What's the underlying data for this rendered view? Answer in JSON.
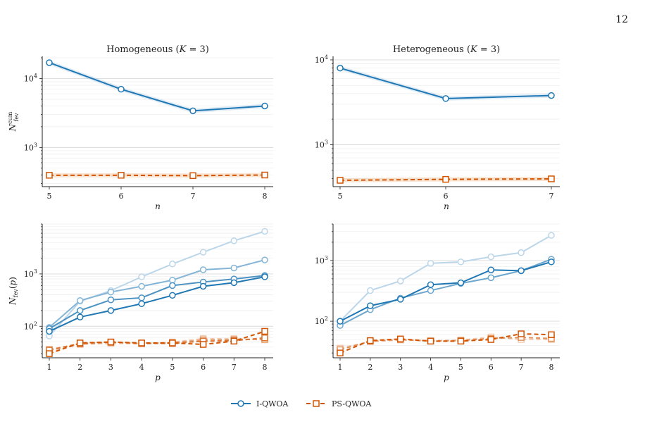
{
  "page_number": "12",
  "colors": {
    "iqwoa": "#1f77b4",
    "psqwoa": "#d35400",
    "iqwoa_light": "#a8cce6",
    "psqwoa_light": "#f2b27a"
  },
  "legend": {
    "position": "bottom-center",
    "items": [
      "I-QWOA",
      "PS-QWOA"
    ]
  },
  "chart_data": [
    {
      "type": "line",
      "title": "Homogeneous (K = 3)",
      "xlabel": "n",
      "ylabel": "N_fev^cum",
      "y_scale": "log",
      "grid": "y-major-and-minor",
      "x_ticks": [
        "5",
        "6",
        "7",
        "8"
      ],
      "y_tick_labels": [
        "10^3",
        "10^4"
      ],
      "xlim": [
        5,
        8
      ],
      "ylim": [
        270,
        21000
      ],
      "series": [
        {
          "name": "I-QWOA",
          "marker": "circle",
          "style": "solid",
          "x": [
            5,
            6,
            7,
            8
          ],
          "y": [
            17000,
            7000,
            3400,
            4000
          ]
        },
        {
          "name": "PS-QWOA",
          "marker": "square",
          "style": "dashed",
          "x": [
            5,
            6,
            7,
            8
          ],
          "y": [
            395,
            395,
            390,
            398
          ]
        }
      ]
    },
    {
      "type": "line",
      "title": "Heterogeneous (K = 3)",
      "xlabel": "n",
      "ylabel": "",
      "y_scale": "log",
      "grid": "y-major-and-minor",
      "x_ticks": [
        "5",
        "6",
        "7"
      ],
      "y_tick_labels": [
        "10^3",
        "10^4"
      ],
      "xlim": [
        5,
        7
      ],
      "ylim": [
        320,
        11000
      ],
      "series": [
        {
          "name": "I-QWOA",
          "marker": "circle",
          "style": "solid",
          "x": [
            5,
            6,
            7
          ],
          "y": [
            8000,
            3500,
            3800
          ]
        },
        {
          "name": "PS-QWOA",
          "marker": "square",
          "style": "dashed",
          "x": [
            5,
            6,
            7
          ],
          "y": [
            380,
            390,
            395
          ]
        }
      ]
    },
    {
      "type": "line",
      "title": "",
      "xlabel": "p",
      "ylabel": "N_fev(p)",
      "y_scale": "log",
      "grid": "y-major-and-minor",
      "x_ticks": [
        "1",
        "2",
        "3",
        "4",
        "5",
        "6",
        "7",
        "8"
      ],
      "y_tick_labels": [
        "10^2",
        "10^3"
      ],
      "xlim": [
        1,
        8
      ],
      "ylim": [
        25,
        9000
      ],
      "series": [
        {
          "name": "I-QWOA (n=5)",
          "marker": "circle",
          "style": "solid",
          "shade": 0,
          "x": [
            1,
            2,
            3,
            4,
            5,
            6,
            7,
            8
          ],
          "y": [
            80,
            150,
            200,
            270,
            390,
            580,
            680,
            880
          ]
        },
        {
          "name": "I-QWOA (n=6)",
          "marker": "circle",
          "style": "solid",
          "shade": 0.2,
          "x": [
            1,
            2,
            3,
            4,
            5,
            6,
            7,
            8
          ],
          "y": [
            90,
            200,
            320,
            350,
            600,
            700,
            800,
            930
          ]
        },
        {
          "name": "I-QWOA (n=7)",
          "marker": "circle",
          "style": "solid",
          "shade": 0.45,
          "x": [
            1,
            2,
            3,
            4,
            5,
            6,
            7,
            8
          ],
          "y": [
            95,
            310,
            450,
            580,
            760,
            1200,
            1300,
            1850
          ]
        },
        {
          "name": "I-QWOA (n=8)",
          "marker": "circle",
          "style": "solid",
          "shade": 0.7,
          "x": [
            1,
            2,
            3,
            4,
            5,
            6,
            7,
            8
          ],
          "y": [
            65,
            300,
            480,
            880,
            1550,
            2600,
            4300,
            6500
          ]
        },
        {
          "name": "PS-QWOA (n=5)",
          "marker": "square",
          "style": "dashed",
          "shade": 0,
          "x": [
            1,
            2,
            3,
            4,
            5,
            6,
            7,
            8
          ],
          "y": [
            30,
            48,
            50,
            48,
            48,
            45,
            52,
            80
          ]
        },
        {
          "name": "PS-QWOA (n=6)",
          "marker": "square",
          "style": "dashed",
          "shade": 0.2,
          "x": [
            1,
            2,
            3,
            4,
            5,
            6,
            7,
            8
          ],
          "y": [
            35,
            47,
            50,
            47,
            47,
            52,
            53,
            60
          ]
        },
        {
          "name": "PS-QWOA (n=7)",
          "marker": "square",
          "style": "dashed",
          "shade": 0.45,
          "x": [
            1,
            2,
            3,
            4,
            5,
            6,
            7,
            8
          ],
          "y": [
            36,
            46,
            49,
            47,
            49,
            55,
            56,
            56
          ]
        },
        {
          "name": "PS-QWOA (n=8)",
          "marker": "square",
          "style": "dashed",
          "shade": 0.7,
          "x": [
            1,
            2,
            3,
            4,
            5,
            6,
            7,
            8
          ],
          "y": [
            33,
            45,
            47,
            46,
            50,
            58,
            58,
            55
          ]
        }
      ]
    },
    {
      "type": "line",
      "title": "",
      "xlabel": "p",
      "ylabel": "",
      "y_scale": "log",
      "grid": "y-major-and-minor",
      "x_ticks": [
        "1",
        "2",
        "3",
        "4",
        "5",
        "6",
        "7",
        "8"
      ],
      "y_tick_labels": [
        "10^2",
        "10^3"
      ],
      "xlim": [
        1,
        8
      ],
      "ylim": [
        25,
        4000
      ],
      "series": [
        {
          "name": "I-QWOA (n=5)",
          "marker": "circle",
          "style": "solid",
          "shade": 0,
          "x": [
            1,
            2,
            3,
            4,
            5,
            6,
            7,
            8
          ],
          "y": [
            100,
            180,
            230,
            400,
            430,
            700,
            680,
            950
          ]
        },
        {
          "name": "I-QWOA (n=6)",
          "marker": "circle",
          "style": "solid",
          "shade": 0.35,
          "x": [
            1,
            2,
            3,
            4,
            5,
            6,
            7,
            8
          ],
          "y": [
            85,
            155,
            240,
            320,
            420,
            520,
            680,
            1050
          ]
        },
        {
          "name": "I-QWOA (n=7)",
          "marker": "circle",
          "style": "solid",
          "shade": 0.7,
          "x": [
            1,
            2,
            3,
            4,
            5,
            6,
            7,
            8
          ],
          "y": [
            100,
            320,
            460,
            900,
            950,
            1150,
            1350,
            2600
          ]
        },
        {
          "name": "PS-QWOA (n=5)",
          "marker": "square",
          "style": "dashed",
          "shade": 0,
          "x": [
            1,
            2,
            3,
            4,
            5,
            6,
            7,
            8
          ],
          "y": [
            30,
            48,
            51,
            47,
            47,
            50,
            62,
            60
          ]
        },
        {
          "name": "PS-QWOA (n=6)",
          "marker": "square",
          "style": "dashed",
          "shade": 0.35,
          "x": [
            1,
            2,
            3,
            4,
            5,
            6,
            7,
            8
          ],
          "y": [
            34,
            47,
            50,
            47,
            48,
            52,
            54,
            52
          ]
        },
        {
          "name": "PS-QWOA (n=7)",
          "marker": "square",
          "style": "dashed",
          "shade": 0.7,
          "x": [
            1,
            2,
            3,
            4,
            5,
            6,
            7,
            8
          ],
          "y": [
            36,
            46,
            49,
            48,
            49,
            55,
            50,
            50
          ]
        }
      ]
    }
  ]
}
